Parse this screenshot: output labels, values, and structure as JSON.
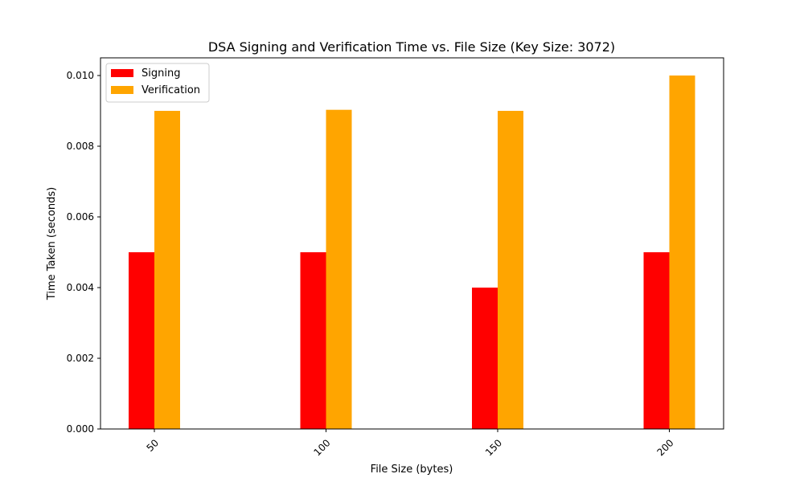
{
  "chart_data": {
    "type": "bar",
    "title": "DSA Signing and Verification Time vs. File Size (Key Size: 3072)",
    "xlabel": "File Size (bytes)",
    "ylabel": "Time Taken (seconds)",
    "categories": [
      "50",
      "100",
      "150",
      "200"
    ],
    "series": [
      {
        "name": "Signing",
        "color": "#ff0000",
        "values": [
          0.005,
          0.005,
          0.004,
          0.005
        ]
      },
      {
        "name": "Verification",
        "color": "#ffa500",
        "values": [
          0.009,
          0.00903,
          0.009,
          0.01
        ]
      }
    ],
    "ylim": [
      0,
      0.0105
    ],
    "yticks": [
      "0.000",
      "0.002",
      "0.004",
      "0.006",
      "0.008",
      "0.010"
    ],
    "xtick_rotation": 45,
    "legend_position": "upper-left",
    "grid": false
  }
}
